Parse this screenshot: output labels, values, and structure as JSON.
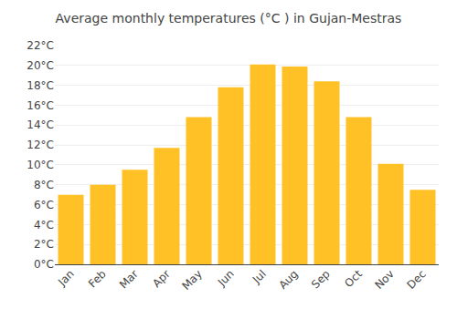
{
  "chart_data": {
    "type": "bar",
    "title": "Average monthly temperatures (°C ) in Gujan-Mestras",
    "categories": [
      "Jan",
      "Feb",
      "Mar",
      "Apr",
      "May",
      "Jun",
      "Jul",
      "Aug",
      "Sep",
      "Oct",
      "Nov",
      "Dec"
    ],
    "values": [
      7.0,
      8.0,
      9.5,
      11.7,
      14.8,
      17.8,
      20.1,
      19.9,
      18.4,
      14.8,
      10.1,
      7.5
    ],
    "color": "#FFC125",
    "ylim": [
      0,
      22
    ],
    "yticks": [
      {
        "value": 0,
        "label": "0°C"
      },
      {
        "value": 2,
        "label": "2°C"
      },
      {
        "value": 4,
        "label": "4°C"
      },
      {
        "value": 6,
        "label": "6°C"
      },
      {
        "value": 8,
        "label": "8°C"
      },
      {
        "value": 10,
        "label": "10°C"
      },
      {
        "value": 12,
        "label": "12°C"
      },
      {
        "value": 14,
        "label": "14°C"
      },
      {
        "value": 16,
        "label": "16°C"
      },
      {
        "value": 18,
        "label": "18°C"
      },
      {
        "value": 20,
        "label": "20°C"
      },
      {
        "value": 22,
        "label": "22°C"
      }
    ],
    "grid": true
  }
}
